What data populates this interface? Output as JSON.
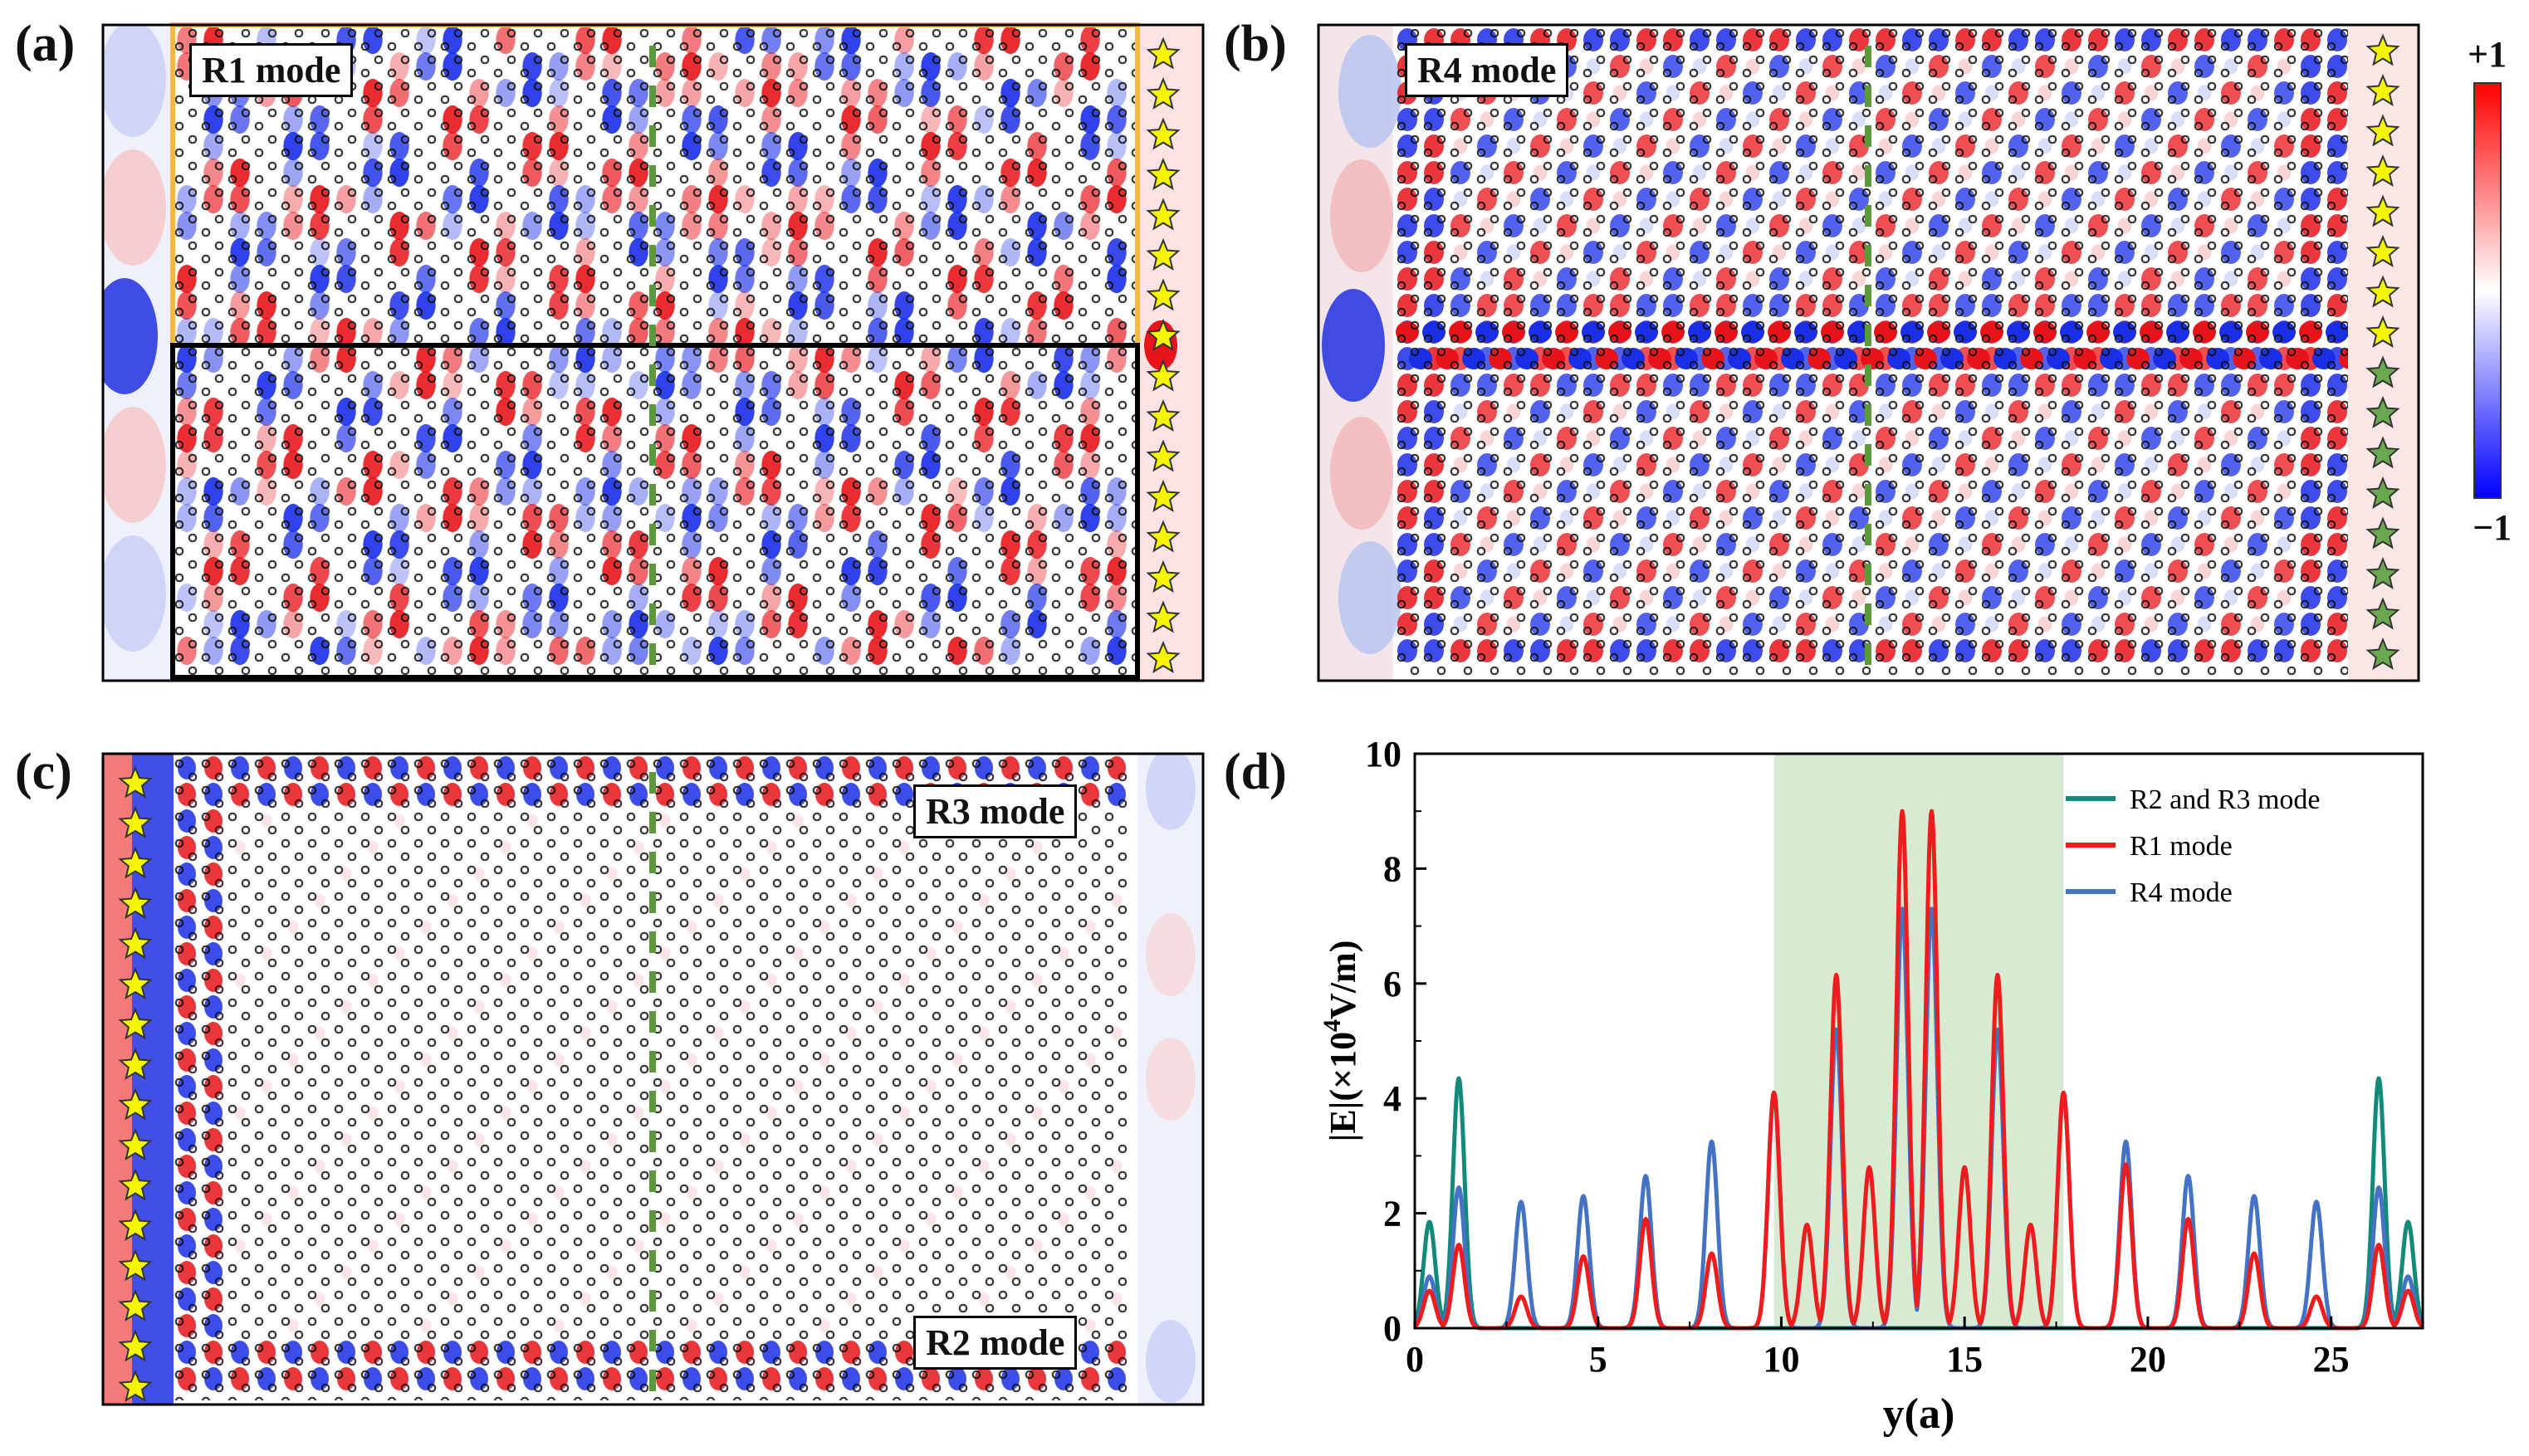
{
  "panel_labels": [
    "(a)",
    "(b)",
    "(c)",
    "(d)"
  ],
  "mode_labels": {
    "a": "R1 mode",
    "b": "R4 mode",
    "c_top": "R3 mode",
    "c_bottom": "R2 mode"
  },
  "colorbar": {
    "max_label": "+1",
    "min_label": "−1",
    "colors": [
      "#0000ff",
      "#ffffff",
      "#ff0000"
    ]
  },
  "colors": {
    "star_yellow": "#f5f500",
    "star_green": "#6aa84f",
    "dash_green": "#5a9a3a",
    "orange_box": "#f5b942",
    "shade": "#d9ead3"
  },
  "chart_data": {
    "type": "line",
    "title": "",
    "xlabel": "y(a)",
    "ylabel": "|E|(×10^4V/m)",
    "ylabel_parts": [
      "|E|(×10",
      "4",
      "V/m)"
    ],
    "xlim": [
      0,
      27.5
    ],
    "ylim": [
      0,
      10
    ],
    "xticks": [
      0,
      5,
      10,
      15,
      20,
      25
    ],
    "yticks": [
      0,
      2,
      4,
      6,
      8,
      10
    ],
    "shaded_region": [
      9.8,
      17.7
    ],
    "legend_position": "top-right",
    "series": [
      {
        "name": "R2 and R3 mode",
        "color": "#128a7a",
        "peaks": [
          [
            0.4,
            1.85
          ],
          [
            1.2,
            4.35
          ],
          [
            26.3,
            4.35
          ],
          [
            27.1,
            1.85
          ]
        ]
      },
      {
        "name": "R1 mode",
        "color": "#ee1c1c",
        "peaks": [
          [
            0.4,
            0.65
          ],
          [
            1.2,
            1.45
          ],
          [
            2.9,
            0.55
          ],
          [
            4.6,
            1.25
          ],
          [
            6.3,
            1.9
          ],
          [
            8.1,
            1.3
          ],
          [
            9.8,
            4.1
          ],
          [
            10.7,
            1.8
          ],
          [
            11.5,
            6.15
          ],
          [
            12.4,
            2.8
          ],
          [
            13.3,
            9.0
          ],
          [
            14.1,
            9.0
          ],
          [
            15.0,
            2.8
          ],
          [
            15.9,
            6.15
          ],
          [
            16.8,
            1.8
          ],
          [
            17.7,
            4.1
          ],
          [
            19.4,
            2.85
          ],
          [
            21.1,
            1.9
          ],
          [
            22.9,
            1.3
          ],
          [
            24.6,
            0.55
          ],
          [
            26.3,
            1.45
          ],
          [
            27.1,
            0.65
          ]
        ]
      },
      {
        "name": "R4 mode",
        "color": "#4472c4",
        "peaks": [
          [
            0.4,
            0.9
          ],
          [
            1.2,
            2.45
          ],
          [
            2.9,
            2.2
          ],
          [
            4.6,
            2.3
          ],
          [
            6.3,
            2.65
          ],
          [
            8.1,
            3.25
          ],
          [
            9.8,
            4.1
          ],
          [
            11.5,
            5.2
          ],
          [
            13.3,
            7.3
          ],
          [
            14.1,
            7.3
          ],
          [
            15.9,
            5.2
          ],
          [
            17.7,
            4.1
          ],
          [
            19.4,
            3.25
          ],
          [
            21.1,
            2.65
          ],
          [
            22.9,
            2.3
          ],
          [
            24.6,
            2.2
          ],
          [
            26.3,
            2.45
          ],
          [
            27.1,
            0.9
          ]
        ]
      }
    ]
  }
}
